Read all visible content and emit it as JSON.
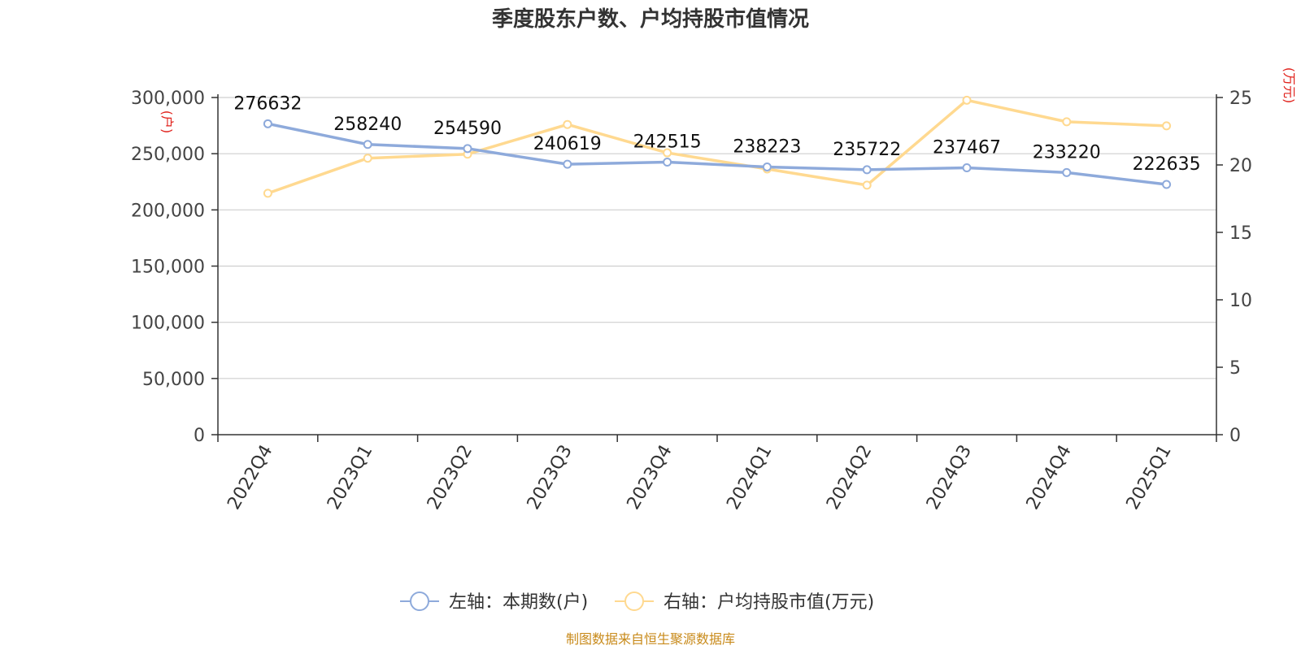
{
  "chart_data": {
    "type": "line",
    "title": "季度股东户数、户均持股市值情况",
    "categories": [
      "2022Q4",
      "2023Q1",
      "2023Q2",
      "2023Q3",
      "2023Q4",
      "2024Q1",
      "2024Q2",
      "2024Q3",
      "2024Q4",
      "2025Q1"
    ],
    "series": [
      {
        "name": "左轴：本期数(户)",
        "axis": "left",
        "color": "#8eaadb",
        "values": [
          276632,
          258240,
          254590,
          240619,
          242515,
          238223,
          235722,
          237467,
          233220,
          222635
        ],
        "labels": [
          "276632",
          "258240",
          "254590",
          "240619",
          "242515",
          "238223",
          "235722",
          "237467",
          "233220",
          "222635"
        ]
      },
      {
        "name": "右轴：户均持股市值(万元)",
        "axis": "right",
        "color": "#ffd990",
        "values": [
          17.9,
          20.5,
          20.8,
          23.0,
          20.9,
          19.7,
          18.5,
          24.8,
          23.2,
          22.9
        ]
      }
    ],
    "y_left": {
      "unit": "(户)",
      "ylim": [
        0,
        300000
      ],
      "ticks": [
        "0",
        "50,000",
        "100,000",
        "150,000",
        "200,000",
        "250,000",
        "300,000"
      ]
    },
    "y_right": {
      "unit": "(万元)",
      "ylim": [
        0,
        25
      ],
      "ticks": [
        "0",
        "5",
        "10",
        "15",
        "20",
        "25"
      ]
    },
    "grid": true,
    "legend_position": "bottom-center",
    "source": "制图数据来自恒生聚源数据库"
  }
}
